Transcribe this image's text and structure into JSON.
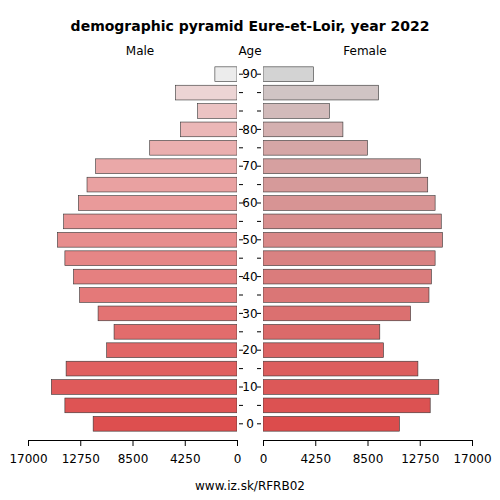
{
  "chart_data": {
    "type": "bar",
    "orientation": "horizontal",
    "title": "demographic pyramid Eure-et-Loir, year 2022",
    "y_label": "Age",
    "annotations": [
      "www.iz.sk/RFRB02"
    ],
    "categories": [
      "0",
      null,
      "10",
      null,
      "20",
      null,
      "30",
      null,
      "40",
      null,
      "50",
      null,
      "60",
      null,
      "70",
      null,
      "80",
      null,
      null,
      "90"
    ],
    "series": [
      {
        "name": "Male",
        "colors": [
          "#dd4f4f",
          "#de5454",
          "#df5a5a",
          "#e06060",
          "#e16666",
          "#e26c6c",
          "#e37373",
          "#e47979",
          "#e58080",
          "#e68686",
          "#e78d8d",
          "#e89393",
          "#e99a9a",
          "#e9a1a1",
          "#eaa8a8",
          "#eaafaf",
          "#ebb7b7",
          "#ebc3c3",
          "#ecd4d4",
          "#ececec"
        ],
        "values": [
          11700,
          14000,
          15100,
          13900,
          10600,
          10000,
          11300,
          12800,
          13300,
          14000,
          14600,
          14100,
          12900,
          12200,
          11500,
          7100,
          4600,
          3200,
          5000,
          1800
        ]
      },
      {
        "name": "Female",
        "colors": [
          "#dc4c4c",
          "#dc5252",
          "#dc5858",
          "#dc5e5e",
          "#dc6464",
          "#db6a6a",
          "#db7070",
          "#da7676",
          "#da7c7c",
          "#d98282",
          "#d98888",
          "#d88e8e",
          "#d79494",
          "#d69a9a",
          "#d6a0a0",
          "#d5a6a6",
          "#d4b0b0",
          "#d2baba",
          "#d0c4c4",
          "#d3d3d3"
        ],
        "values": [
          11100,
          13600,
          14300,
          12600,
          9800,
          9500,
          12000,
          13500,
          13700,
          14000,
          14600,
          14500,
          14000,
          13400,
          12800,
          8500,
          6500,
          5400,
          9400,
          4100
        ]
      }
    ],
    "xlim": [
      0,
      17000
    ],
    "xticks": [
      0,
      4250,
      8500,
      12750,
      17000
    ]
  }
}
